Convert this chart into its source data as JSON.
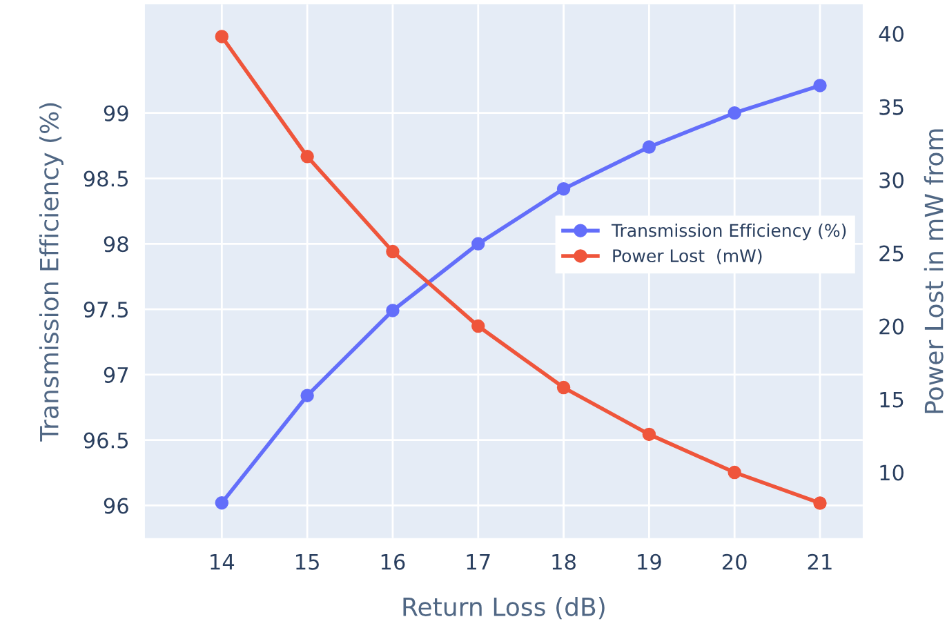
{
  "chart_data": {
    "type": "line",
    "xlabel": "Return Loss (dB)",
    "ylabel": "Transmission Efficiency (%)",
    "y2label": "Power Lost in mW from",
    "x": [
      14,
      15,
      16,
      17,
      18,
      19,
      20,
      21
    ],
    "series": [
      {
        "name": "Transmission Efficiency (%)",
        "color": "#636efa",
        "values": [
          96.02,
          96.84,
          97.49,
          98.0,
          98.42,
          98.74,
          99.0,
          99.21
        ]
      },
      {
        "name": "Power Lost  (mW)",
        "color": "#ef553b",
        "axis": "y2",
        "values": [
          39.8,
          31.6,
          25.1,
          20.0,
          15.8,
          12.6,
          10.0,
          7.9
        ]
      }
    ],
    "xlim": [
      13.1,
      21.5
    ],
    "xticks": [
      14,
      15,
      16,
      17,
      18,
      19,
      20,
      21
    ],
    "ylim": [
      95.75,
      99.83
    ],
    "yticks": [
      96,
      96.5,
      97,
      97.5,
      98,
      98.5,
      99
    ],
    "y2lim": [
      5.5,
      42
    ],
    "y2ticks": [
      10,
      15,
      20,
      25,
      30,
      35,
      40
    ],
    "grid": true,
    "legend": "right",
    "marker": "circle",
    "line_style": "solid"
  }
}
